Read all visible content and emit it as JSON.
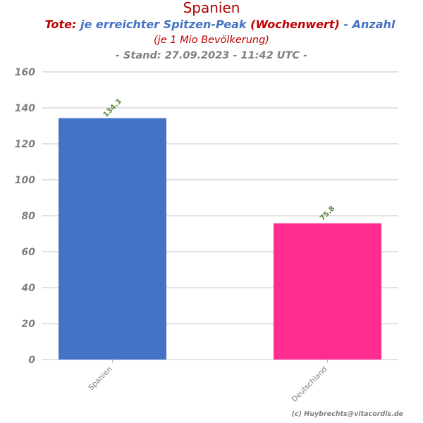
{
  "chart_data": {
    "type": "bar",
    "title": "Spanien",
    "subtitle": {
      "part1": "Tote:",
      "part2": "je erreichter Spitzen-Peak",
      "part3": "(Wochenwert)",
      "part4": "- Anzahl"
    },
    "subtitle2": "(je 1 Mio Bevölkerung)",
    "stand": "- Stand: 27.09.2023 - 11:42 UTC -",
    "categories": [
      "Spanien",
      "Deutschland"
    ],
    "values": [
      134.3,
      75.8
    ],
    "value_labels": [
      "134.3",
      "75.8"
    ],
    "colors": [
      "#4472c4",
      "#ff2d8f"
    ],
    "ylim": [
      0,
      160
    ],
    "yticks": [
      0,
      20,
      40,
      60,
      80,
      100,
      120,
      140,
      160
    ],
    "ytick_labels": [
      "0",
      "20",
      "40",
      "60",
      "80",
      "100",
      "120",
      "140",
      "160"
    ],
    "grid": true,
    "credit": "(c) Huybrechts@vitacordis.de"
  },
  "colors": {
    "title_red": "#b00000",
    "blue": "#4472c4",
    "grey": "#808080",
    "label_green": "#548235"
  }
}
